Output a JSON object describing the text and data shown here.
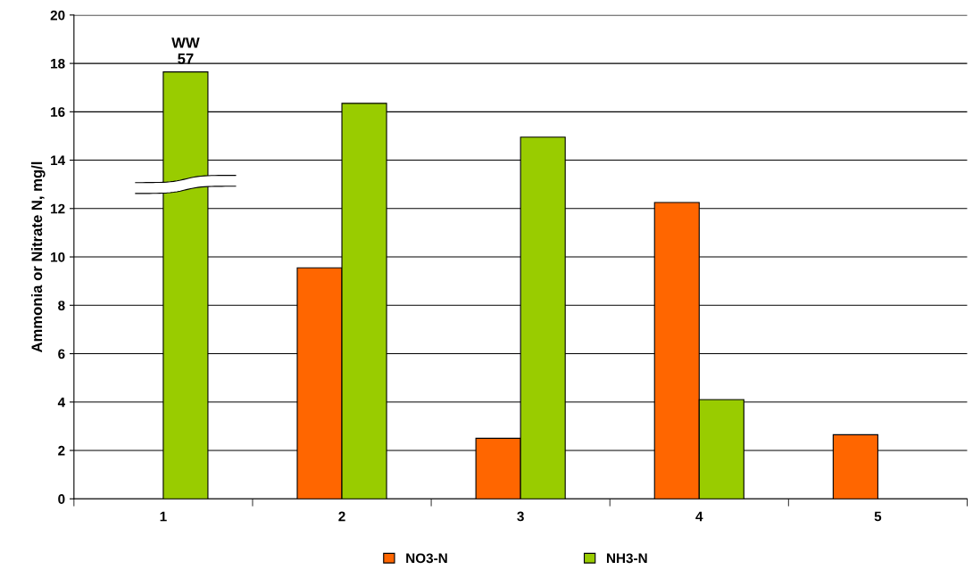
{
  "chart_data": {
    "type": "bar",
    "ylabel": "Ammonia or Nitrate N, mg/l",
    "categories": [
      "1",
      "2",
      "3",
      "4",
      "5"
    ],
    "series": [
      {
        "name": "NO3-N",
        "color": "#ff6600",
        "values": [
          null,
          9.55,
          2.5,
          12.25,
          2.65
        ]
      },
      {
        "name": "NH3-N",
        "color": "#99cc00",
        "values": [
          17.65,
          16.35,
          14.95,
          4.1,
          null
        ]
      }
    ],
    "annotations": [
      {
        "text": "WW\n57",
        "x": "1",
        "y": 17.65
      }
    ],
    "ylim": [
      0,
      20
    ],
    "yticks": [
      0,
      2,
      4,
      6,
      8,
      10,
      12,
      14,
      16,
      18,
      20
    ],
    "grid": "y",
    "legend": "bottom"
  }
}
